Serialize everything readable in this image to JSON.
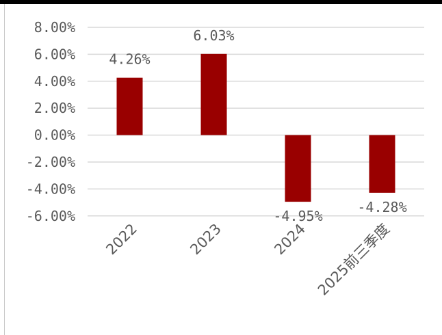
{
  "chart_data": {
    "type": "bar",
    "categories": [
      "2022",
      "2023",
      "2024",
      "2025前三季度"
    ],
    "values": [
      4.26,
      6.03,
      -4.95,
      -4.28
    ],
    "data_labels": [
      "4.26%",
      "6.03%",
      "-4.95%",
      "-4.28%"
    ],
    "y_ticks": [
      "8.00%",
      "6.00%",
      "4.00%",
      "2.00%",
      "0.00%",
      "-2.00%",
      "-4.00%",
      "-6.00%"
    ],
    "y_tick_values": [
      8,
      6,
      4,
      2,
      0,
      -2,
      -4,
      -6
    ],
    "ylim": [
      -6,
      8
    ],
    "grid": true,
    "legend": "none",
    "title": "",
    "xlabel": "",
    "ylabel": "",
    "colors": {
      "bar": "#990000",
      "grid": "#d9d9d9",
      "text": "#595959"
    }
  }
}
